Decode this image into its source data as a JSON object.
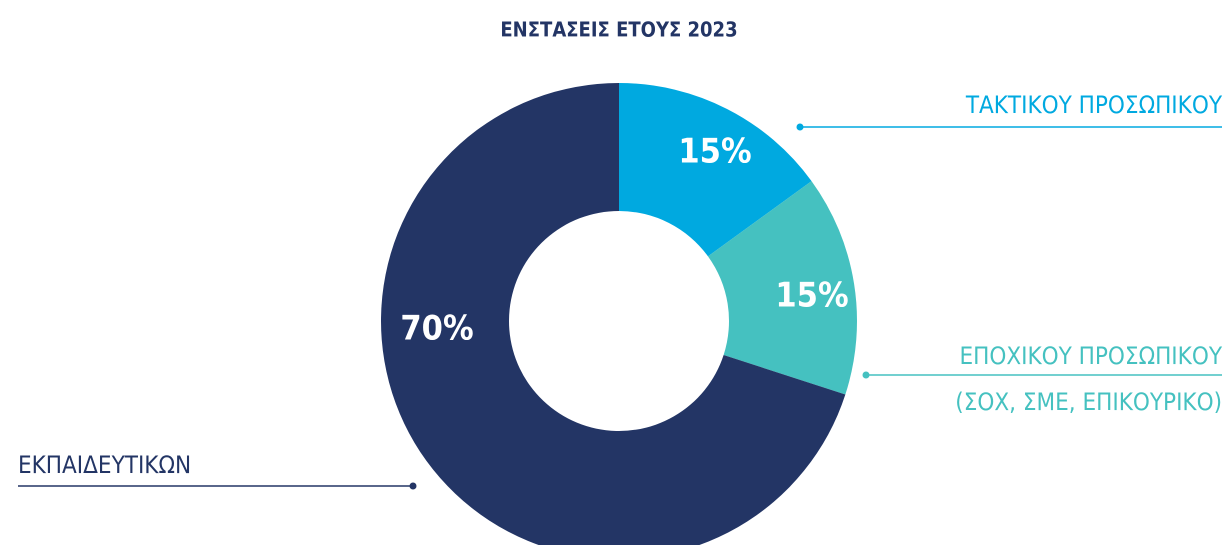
{
  "chart_data": {
    "type": "pie",
    "title": "ΕΝΣΤΑΣΕΙΣ ΕΤΟΥΣ 2023",
    "categories": [
      "ΤΑΚΤΙΚΟΥ ΠΡΟΣΩΠΙΚΟΥ",
      "ΕΠΟΧΙΚΟΥ ΠΡΟΣΩΠΙΚΟΥ\n(ΣΟΧ, ΣΜΕ, ΕΠΙΚΟΥΡΙΚΟ)",
      "ΕΚΠΑΙΔΕΥΤΙΚΩΝ"
    ],
    "values": [
      15,
      15,
      70
    ],
    "value_labels": [
      "15%",
      "15%",
      "70%"
    ],
    "colors": [
      "#00a9e0",
      "#45c1c0",
      "#233565"
    ]
  }
}
